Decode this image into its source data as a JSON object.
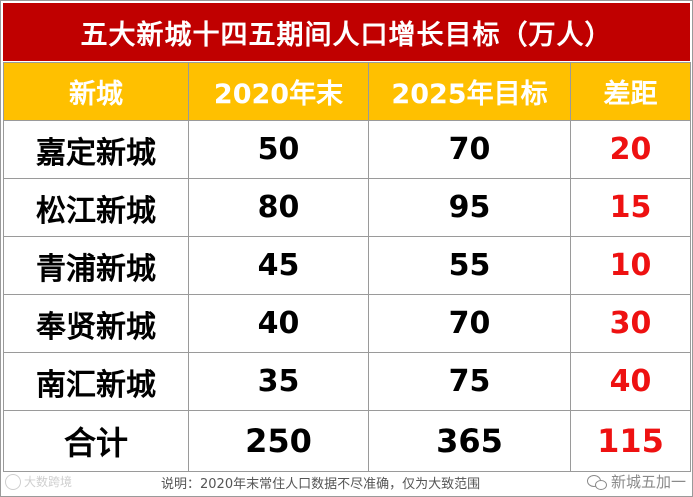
{
  "title": "五大新城十四五期间人口增长目标（万人）",
  "header": {
    "col1": "新城",
    "col2": "2020年末",
    "col3": "2025年目标",
    "col4": "差距"
  },
  "rows": [
    {
      "name": "嘉定新城",
      "y2020": "50",
      "y2025": "70",
      "gap": "20"
    },
    {
      "name": "松江新城",
      "y2020": "80",
      "y2025": "95",
      "gap": "15"
    },
    {
      "name": "青浦新城",
      "y2020": "45",
      "y2025": "55",
      "gap": "10"
    },
    {
      "name": "奉贤新城",
      "y2020": "40",
      "y2025": "70",
      "gap": "30"
    },
    {
      "name": "南汇新城",
      "y2020": "35",
      "y2025": "75",
      "gap": "40"
    }
  ],
  "total": {
    "name": "合计",
    "y2020": "250",
    "y2025": "365",
    "gap": "115"
  },
  "note": "说明：2020年末常住人口数据不尽准确，仅为大致范围",
  "watermark_left": "大数跨境",
  "watermark_right": "新城五加一",
  "colors": {
    "title_bg": "#c00000",
    "header_bg": "#ffc000",
    "gap_text": "#ee1111"
  }
}
